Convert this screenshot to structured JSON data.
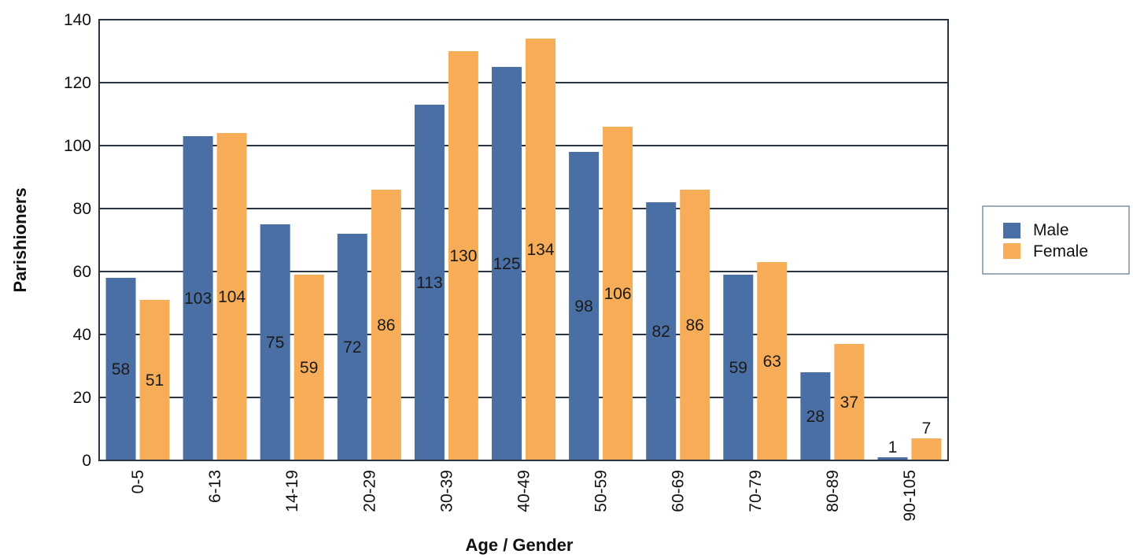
{
  "chart_data": {
    "type": "bar",
    "xlabel": "Age / Gender",
    "ylabel": "Parishioners",
    "ylim": [
      0,
      140
    ],
    "yticks": [
      0,
      20,
      40,
      60,
      80,
      100,
      120,
      140
    ],
    "grid": true,
    "legend_position": "right",
    "categories": [
      "0-5",
      "6-13",
      "14-19",
      "20-29",
      "30-39",
      "40-49",
      "50-59",
      "60-69",
      "70-79",
      "80-89",
      "90-105"
    ],
    "series": [
      {
        "name": "Male",
        "color": "#4a6fa5",
        "values": [
          58,
          103,
          75,
          72,
          113,
          125,
          98,
          82,
          59,
          28,
          1
        ]
      },
      {
        "name": "Female",
        "color": "#f7ac57",
        "values": [
          51,
          104,
          59,
          86,
          130,
          134,
          106,
          86,
          63,
          37,
          7
        ]
      }
    ]
  }
}
